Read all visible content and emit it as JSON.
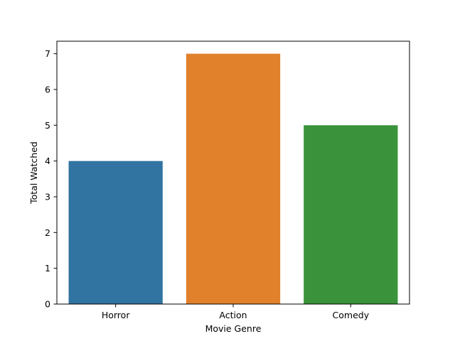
{
  "chart_data": {
    "type": "bar",
    "categories": [
      "Horror",
      "Action",
      "Comedy"
    ],
    "values": [
      4,
      7,
      5
    ],
    "colors": [
      "#3274a1",
      "#e1812c",
      "#3a923a"
    ],
    "xlabel": "Movie Genre",
    "ylabel": "Total Watched",
    "ylim": [
      0,
      7.35
    ],
    "yticks": [
      0,
      1,
      2,
      3,
      4,
      5,
      6,
      7
    ],
    "grid": false,
    "legend": "none"
  }
}
